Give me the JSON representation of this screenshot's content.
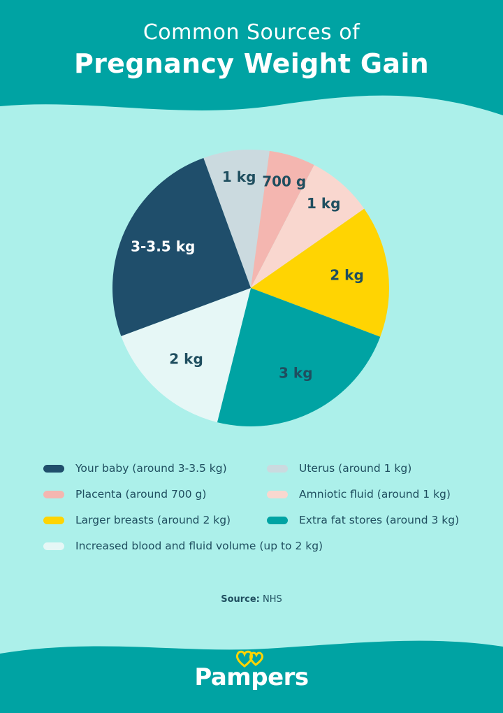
{
  "header": {
    "title_line1": "Common Sources of",
    "title_line2": "Pregnancy Weight Gain"
  },
  "colors": {
    "background": "#ACF0EA",
    "header_band": "#00A3A3",
    "baby": "#1F4E6B",
    "uterus": "#CBDADF",
    "placenta": "#F4B6B0",
    "amniotic": "#F9D7CF",
    "breasts": "#FFD402",
    "fat": "#00A3A3",
    "blood": "#E6F7F6",
    "text_dark": "#1F4E5F"
  },
  "chart_data": {
    "type": "pie",
    "slices": [
      {
        "key": "uterus",
        "label": "1 kg",
        "value": 1,
        "color": "#CBDADF",
        "label_color": "#1F4E5F"
      },
      {
        "key": "placenta",
        "label": "700 g",
        "value": 0.7,
        "color": "#F4B6B0",
        "label_color": "#1F4E5F"
      },
      {
        "key": "amniotic",
        "label": "1 kg",
        "value": 1,
        "color": "#F9D7CF",
        "label_color": "#1F4E5F"
      },
      {
        "key": "breasts",
        "label": "2 kg",
        "value": 2,
        "color": "#FFD402",
        "label_color": "#1F4E5F"
      },
      {
        "key": "fat",
        "label": "3 kg",
        "value": 3,
        "color": "#00A3A3",
        "label_color": "#1F4E5F"
      },
      {
        "key": "blood",
        "label": "2 kg",
        "value": 2,
        "color": "#E6F7F6",
        "label_color": "#1F4E5F"
      },
      {
        "key": "baby",
        "label": "3-3.5 kg",
        "value": 3.25,
        "color": "#1F4E6B",
        "label_color": "#FFFFFF"
      }
    ],
    "legend": [
      {
        "text": "Your baby (around 3-3.5 kg)",
        "color": "#1F4E6B"
      },
      {
        "text": "Uterus (around 1 kg)",
        "color": "#CBDADF"
      },
      {
        "text": "Placenta (around 700 g)",
        "color": "#F4B6B0"
      },
      {
        "text": "Amniotic fluid (around 1 kg)",
        "color": "#F9D7CF"
      },
      {
        "text": "Larger breasts (around 2 kg)",
        "color": "#FFD402"
      },
      {
        "text": "Extra fat stores (around 3 kg)",
        "color": "#00A3A3"
      },
      {
        "text": "Increased blood and fluid volume (up to 2 kg)",
        "color": "#E6F7F6"
      }
    ]
  },
  "footer": {
    "source_prefix": "Source:",
    "source_name": "NHS",
    "logo_text": "Pampers"
  }
}
